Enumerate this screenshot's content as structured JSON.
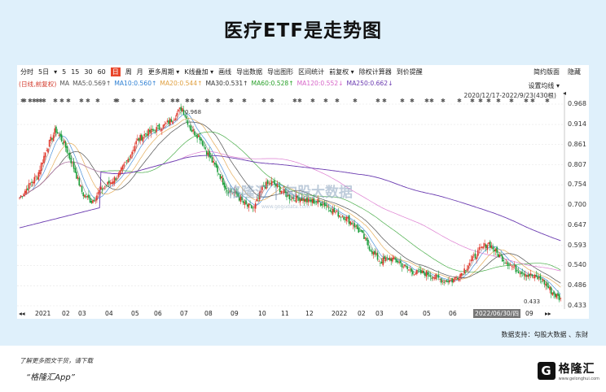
{
  "title": "医疗ETF是走势图",
  "toolbar": {
    "items": [
      "分时",
      "5日",
      "▾",
      "5",
      "15",
      "30",
      "60",
      "日",
      "周",
      "月",
      "更多周期 ▾",
      "K线叠加 ▾",
      "画线",
      "导出数据",
      "导出图形",
      "区间统计",
      "前复权 ▾",
      "除权计算器",
      "到价提醒"
    ],
    "active_index": 7,
    "right": [
      "简约版面",
      "隐藏"
    ]
  },
  "ma_legend": [
    {
      "text": "(日线,前复权)",
      "color": "#d33a2c"
    },
    {
      "text": "MA",
      "color": "#555555"
    },
    {
      "text": "MA5:0.569↑",
      "color": "#555555"
    },
    {
      "text": "MA10:0.560↑",
      "color": "#2d7fd3"
    },
    {
      "text": "MA20:0.544↑",
      "color": "#e0a040"
    },
    {
      "text": "MA30:0.531↑",
      "color": "#333333"
    },
    {
      "text": "MA60:0.528↑",
      "color": "#2aa02a"
    },
    {
      "text": "MA120:0.552↓",
      "color": "#d766c9"
    },
    {
      "text": "MA250:0.662↓",
      "color": "#6a3ab0"
    }
  ],
  "ma_settings": "设置均线 ▾",
  "range": "2020/12/17-2022/9/23(430根)",
  "range_arrow": "◂",
  "annotations": {
    "high": "0.968",
    "low": "0.433"
  },
  "watermark": {
    "cn": "勾股大数据",
    "url": "www.gogudata.com",
    "brand": "格隆汇"
  },
  "y_labels": [
    "0.968",
    "0.914",
    "0.861",
    "0.807",
    "0.754",
    "0.700",
    "0.647",
    "0.593",
    "0.540",
    "0.486",
    "0.433"
  ],
  "x_labels": [
    "◂◂",
    "2021",
    "02",
    "03",
    "04",
    "05",
    "06",
    "07",
    "08",
    "09",
    "10",
    "11",
    "12",
    "2022",
    "02",
    "03",
    "04",
    "05",
    "06",
    "2022/06/30/四",
    "09",
    "▸▸"
  ],
  "source": "数据支持：勾股大数据 、东财",
  "footer": {
    "download": "了解更多图文干货，请下载",
    "app": "“格隆汇App”",
    "logo_cn": "格隆汇",
    "logo_en": "www.gelonghui.com",
    "logo_mark": "G"
  },
  "chart_data": {
    "type": "candlestick",
    "range_text": "2020/12/17-2022/9/23",
    "ylim": [
      0.433,
      0.968
    ],
    "close": [
      0.72,
      0.75,
      0.78,
      0.85,
      0.9,
      0.86,
      0.8,
      0.73,
      0.71,
      0.74,
      0.76,
      0.78,
      0.82,
      0.87,
      0.89,
      0.9,
      0.91,
      0.93,
      0.96,
      0.9,
      0.88,
      0.83,
      0.79,
      0.74,
      0.73,
      0.7,
      0.69,
      0.75,
      0.76,
      0.74,
      0.72,
      0.72,
      0.71,
      0.71,
      0.7,
      0.68,
      0.67,
      0.65,
      0.62,
      0.58,
      0.55,
      0.56,
      0.55,
      0.53,
      0.52,
      0.52,
      0.51,
      0.5,
      0.5,
      0.52,
      0.55,
      0.58,
      0.6,
      0.57,
      0.55,
      0.53,
      0.52,
      0.51,
      0.5,
      0.47,
      0.45
    ],
    "high_point": 0.968,
    "low_point": 0.433,
    "series": [
      {
        "name": "MA5",
        "last": 0.569
      },
      {
        "name": "MA10",
        "last": 0.56
      },
      {
        "name": "MA20",
        "last": 0.544
      },
      {
        "name": "MA30",
        "last": 0.531
      },
      {
        "name": "MA60",
        "last": 0.528
      },
      {
        "name": "MA120",
        "last": 0.552
      },
      {
        "name": "MA250",
        "last": 0.662
      }
    ]
  }
}
